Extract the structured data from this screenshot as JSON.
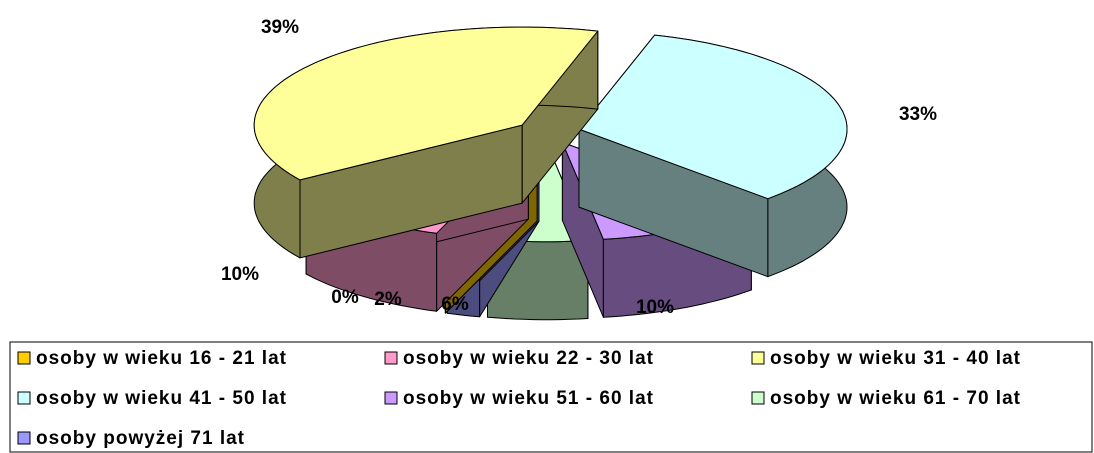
{
  "chart_data": {
    "type": "pie",
    "categories": [
      "osoby w wieku 16 - 21 lat",
      "osoby w wieku 22 - 30 lat",
      "osoby w wieku 31 - 40 lat",
      "osoby w wieku 41 - 50 lat",
      "osoby w wieku 51 - 60 lat",
      "osoby w wieku 61 - 70 lat",
      "osoby powyżej 71 lat"
    ],
    "values": [
      0,
      10,
      39,
      33,
      10,
      6,
      2
    ],
    "value_labels": [
      "0%",
      "10%",
      "39%",
      "33%",
      "10%",
      "6%",
      "2%"
    ],
    "colors": [
      "#ffcc00",
      "#ff99cc",
      "#ffff99",
      "#ccffff",
      "#cc99ff",
      "#ccffcc",
      "#9999ff"
    ],
    "legend": "bottom"
  }
}
